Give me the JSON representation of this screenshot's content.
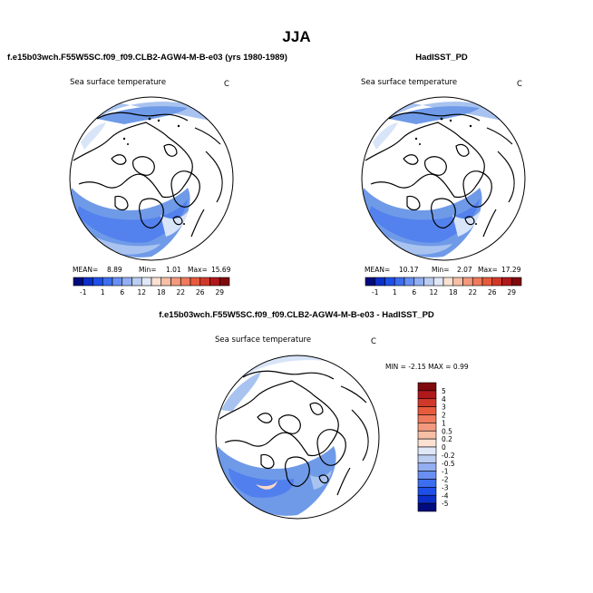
{
  "title": "JJA",
  "panels": [
    {
      "heading": "f.e15b03wch.F55W5SC.f09_f09.CLB2-AGW4-M-B-e03 (yrs 1980-1989)",
      "variable": "Sea surface temperature",
      "units": "C",
      "stats": {
        "mean_label": "MEAN=",
        "mean": "8.89",
        "min_label": "Min=",
        "min": "1.01",
        "max_label": "Max=",
        "max": "15.69"
      }
    },
    {
      "heading": "HadISST_PD",
      "variable": "Sea surface temperature",
      "units": "C",
      "stats": {
        "mean_label": "MEAN=",
        "mean": "10.17",
        "min_label": "Min=",
        "min": "2.07",
        "max_label": "Max=",
        "max": "17.29"
      }
    },
    {
      "heading": "f.e15b03wch.F55W5SC.f09_f09.CLB2-AGW4-M-B-e03 - HadISST_PD",
      "variable": "Sea surface temperature",
      "units": "C",
      "stats_text": "MIN =   -2.15  MAX =    0.99"
    }
  ],
  "horizontal_colorbar": {
    "labels": [
      "-1",
      "1",
      "6",
      "12",
      "18",
      "22",
      "26",
      "29"
    ],
    "colors": [
      "#000b7e",
      "#0b2fc8",
      "#1e4fe8",
      "#3d6ef0",
      "#6a8ff2",
      "#93aff2",
      "#bccdf2",
      "#e0e8f8",
      "#fbe1d2",
      "#f7bfa5",
      "#f39a7e",
      "#ef7a5d",
      "#e85a3c",
      "#d2382a",
      "#b0181c",
      "#7e0a0e"
    ]
  },
  "vertical_colorbar": {
    "labels": [
      "5",
      "4",
      "3",
      "2",
      "1",
      "0.5",
      "0.2",
      "0",
      "-0.2",
      "-0.5",
      "-1",
      "-2",
      "-3",
      "-4",
      "-5"
    ],
    "colors": [
      "#7e0a0e",
      "#b0181c",
      "#d2382a",
      "#e85a3c",
      "#ef7a5d",
      "#f39a7e",
      "#f7bfa5",
      "#fbe1d2",
      "#e0e8f8",
      "#bccdf2",
      "#93aff2",
      "#6a8ff2",
      "#3d6ef0",
      "#1e4fe8",
      "#0b2fc8",
      "#000b7e"
    ]
  },
  "colors": {
    "ocean_blue": "#6f9ae8",
    "light_blue": "#a9c3f0",
    "pale_blue": "#d8e4f8",
    "peach": "#f9d9c9"
  }
}
